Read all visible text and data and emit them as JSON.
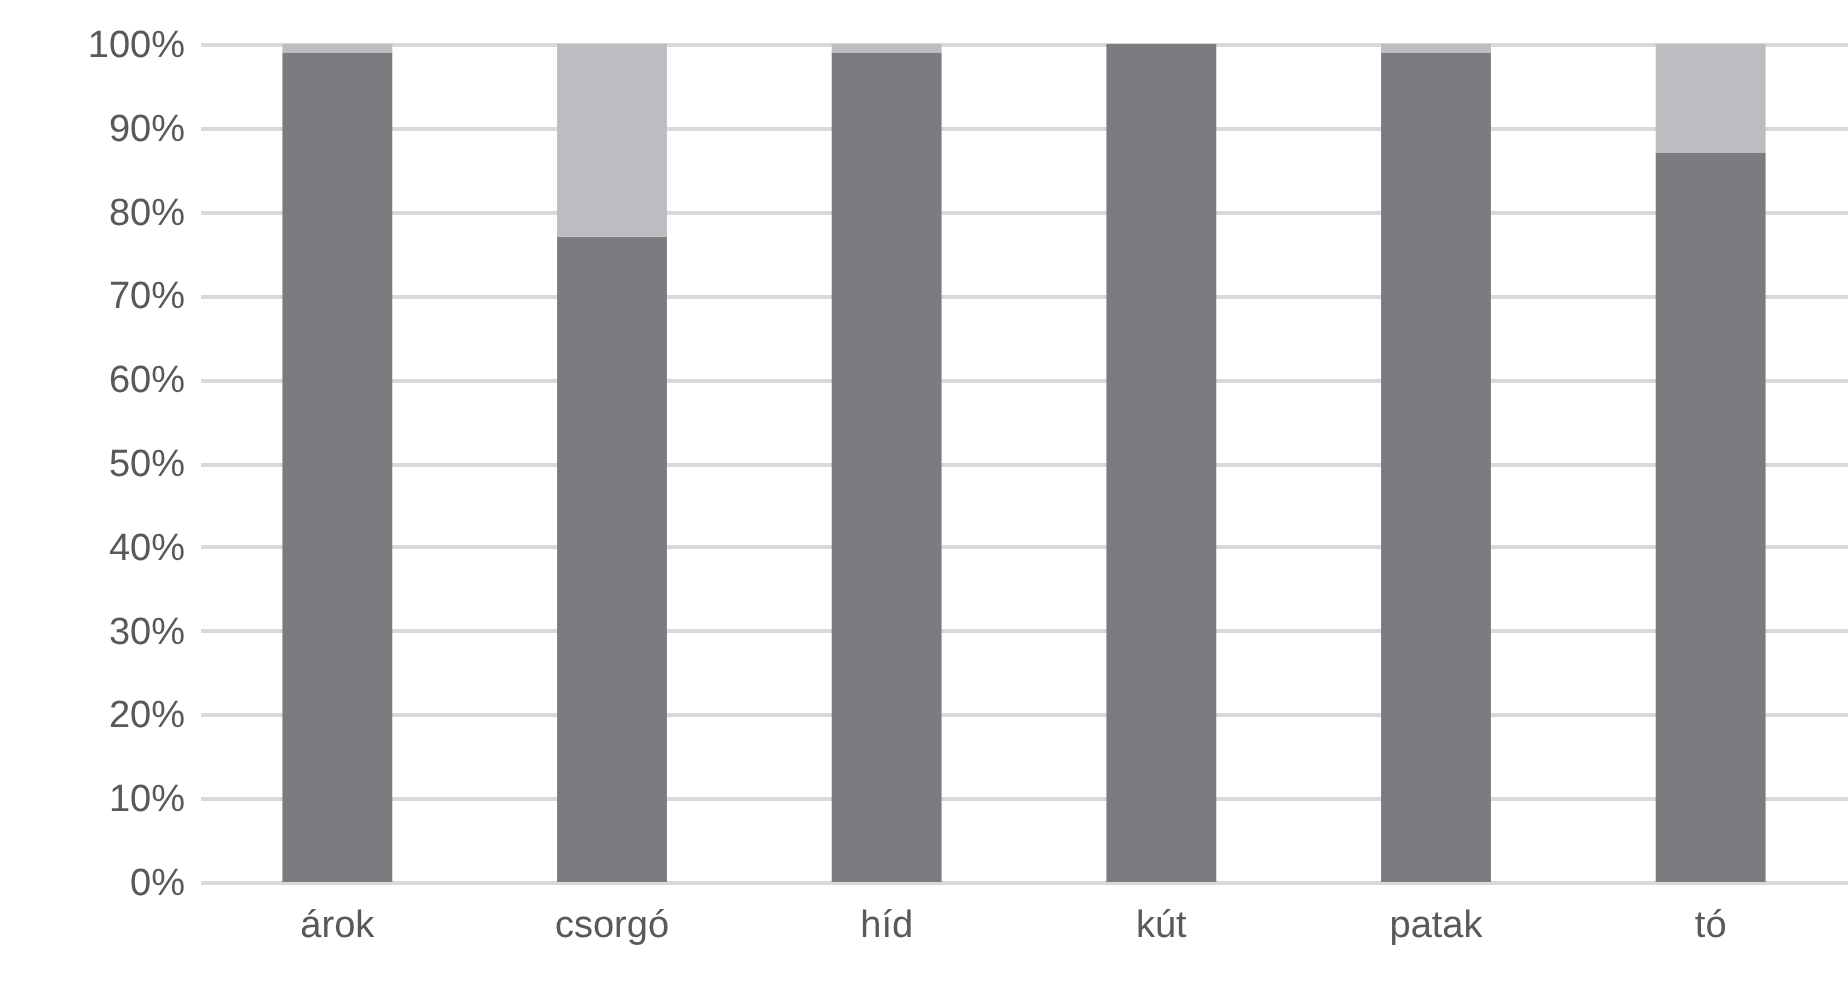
{
  "chart_data": {
    "type": "bar",
    "stacked": true,
    "categories": [
      "árok",
      "csorgó",
      "híd",
      "kút",
      "patak",
      "tó"
    ],
    "series": [
      {
        "color": "#7b7c80",
        "values": [
          99,
          77,
          99,
          100,
          99,
          87
        ]
      },
      {
        "color": "#bcbdc1",
        "values": [
          1,
          23,
          1,
          0,
          1,
          13
        ]
      }
    ],
    "ylim": [
      0,
      100
    ],
    "yticks": [
      {
        "value": 0,
        "label": "0%"
      },
      {
        "value": 10,
        "label": "10%"
      },
      {
        "value": 20,
        "label": "20%"
      },
      {
        "value": 30,
        "label": "30%"
      },
      {
        "value": 40,
        "label": "40%"
      },
      {
        "value": 50,
        "label": "50%"
      },
      {
        "value": 60,
        "label": "60%"
      },
      {
        "value": 70,
        "label": "70%"
      },
      {
        "value": 80,
        "label": "80%"
      },
      {
        "value": 90,
        "label": "90%"
      },
      {
        "value": 100,
        "label": "100%"
      }
    ],
    "grid": "y",
    "legend": false
  }
}
